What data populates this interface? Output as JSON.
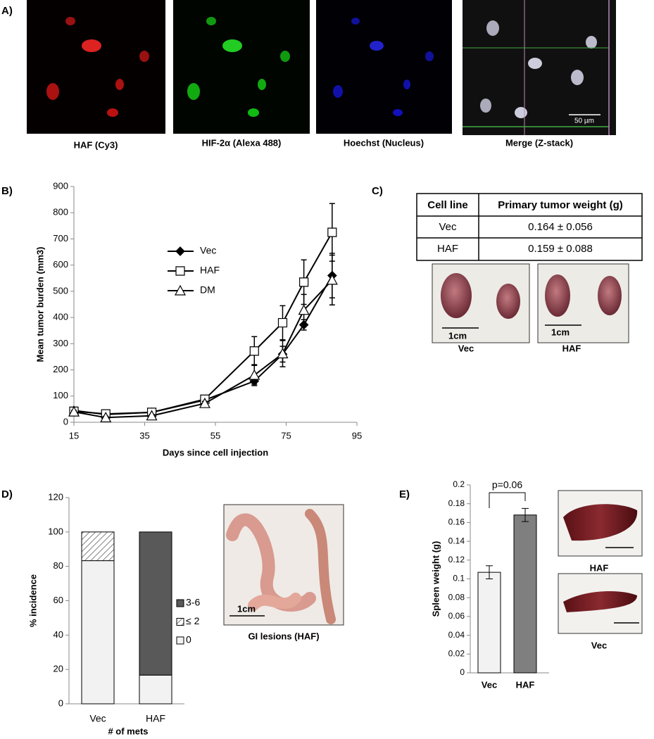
{
  "panels": [
    "A)",
    "B)",
    "C)",
    "D)",
    "E)"
  ],
  "images": {
    "captions": [
      "HAF (Cy3)",
      "HIF-2α (Alexa 488)",
      "Hoechst (Nucleus)",
      "Merge (Z-stack)"
    ],
    "scale_merge": "50 µm",
    "scale_tumor": "1cm",
    "tumor_captions": [
      "Vec",
      "HAF"
    ],
    "gi_scale": "1cm",
    "gi_caption": "GI lesions (HAF)",
    "spleen_captions": [
      "HAF",
      "Vec"
    ]
  },
  "table": {
    "header": [
      "Cell line",
      "Primary tumor weight (g)"
    ],
    "rows": [
      [
        "Vec",
        "0.164 ± 0.056"
      ],
      [
        "HAF",
        "0.159 ± 0.088"
      ]
    ]
  },
  "chart_data": [
    {
      "type": "line",
      "xlabel": "Days since cell injection",
      "ylabel": "Mean tumor burden (mm3)",
      "x": [
        15,
        24,
        37,
        52,
        66,
        74,
        80,
        88
      ],
      "xlim": [
        15,
        95
      ],
      "xticks": [
        15,
        35,
        55,
        75,
        95
      ],
      "ylim": [
        0,
        900
      ],
      "yticks": [
        0,
        100,
        200,
        300,
        400,
        500,
        600,
        700,
        800,
        900
      ],
      "legend": "upper left",
      "series": [
        {
          "name": "Vec",
          "color": "#000000",
          "marker": "diamond",
          "fill": true,
          "values": [
            45,
            30,
            38,
            85,
            157,
            260,
            372,
            560
          ],
          "errors": [
            5,
            4,
            4,
            8,
            12,
            30,
            20,
            85
          ]
        },
        {
          "name": "HAF",
          "color": "#000000",
          "marker": "square",
          "fill": false,
          "values": [
            42,
            32,
            38,
            88,
            272,
            380,
            535,
            725
          ],
          "errors": [
            5,
            5,
            5,
            8,
            55,
            65,
            85,
            110
          ]
        },
        {
          "name": "DM",
          "color": "#000000",
          "marker": "triangle",
          "fill": false,
          "values": [
            40,
            18,
            25,
            72,
            180,
            262,
            428,
            543
          ],
          "errors": [
            5,
            5,
            5,
            8,
            40,
            50,
            60,
            95
          ]
        }
      ]
    },
    {
      "type": "stacked_bar",
      "xlabel": "# of mets",
      "ylabel": "% incidence",
      "categories": [
        "Vec",
        "HAF"
      ],
      "ylim": [
        0,
        120
      ],
      "yticks": [
        0,
        20,
        40,
        60,
        80,
        100,
        120
      ],
      "legend": "right",
      "series": [
        {
          "name": "0",
          "color": "#f2f2f2",
          "values": [
            83.3,
            16.7
          ]
        },
        {
          "name": "≤ 2",
          "color": "#ffffff",
          "hatch": true,
          "values": [
            16.7,
            0
          ]
        },
        {
          "name": "3-6",
          "color": "#595959",
          "values": [
            0,
            83.3
          ]
        }
      ]
    },
    {
      "type": "bar",
      "ylabel": "Spleen weight (g)",
      "annotation": "p=0.06",
      "categories": [
        "Vec",
        "HAF"
      ],
      "values": [
        0.107,
        0.168
      ],
      "errors": [
        0.007,
        0.007
      ],
      "colors": [
        "#f2f2f2",
        "#7f7f7f"
      ],
      "ylim": [
        0,
        0.2
      ],
      "yticks": [
        0,
        0.02,
        0.04,
        0.06,
        0.08,
        0.1,
        0.12,
        0.14,
        0.16,
        0.18,
        0.2
      ]
    }
  ]
}
